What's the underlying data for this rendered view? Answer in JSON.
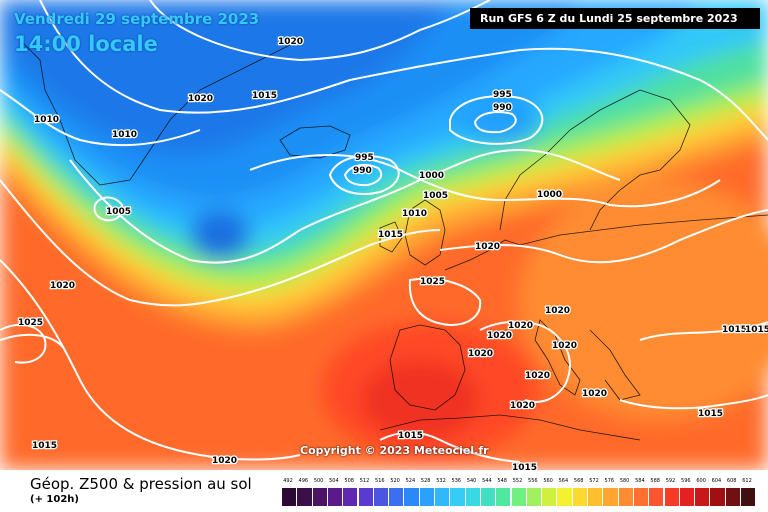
{
  "header": {
    "date": "Vendredi 29 septembre 2023",
    "time": "14:00 locale",
    "run": "Run GFS 6 Z du Lundi 25 septembre 2023"
  },
  "copyright": "Copyright © 2023 Meteociel.fr",
  "footer": {
    "title": "Géop. Z500 & pression au sol",
    "subtitle": "(+ 102h)"
  },
  "legend": {
    "ticks": [
      "492",
      "496",
      "500",
      "504",
      "508",
      "512",
      "516",
      "520",
      "524",
      "528",
      "532",
      "536",
      "540",
      "544",
      "548",
      "552",
      "556",
      "560",
      "564",
      "568",
      "572",
      "576",
      "580",
      "584",
      "588",
      "592",
      "596",
      "600",
      "604",
      "608",
      "612"
    ],
    "colors": [
      "#2a0a35",
      "#3a0f4a",
      "#4d1465",
      "#5a1a8a",
      "#6028b0",
      "#5a3ad0",
      "#4a55e0",
      "#3a70f0",
      "#2a88f8",
      "#2aa0ff",
      "#30b8ff",
      "#35ccf5",
      "#3ad8e0",
      "#40e0c0",
      "#50e8a0",
      "#70f080",
      "#a0f060",
      "#d0f040",
      "#f5f030",
      "#ffd830",
      "#ffc030",
      "#ffa530",
      "#ff8c30",
      "#ff7030",
      "#ff5530",
      "#f53a25",
      "#e52020",
      "#c81818",
      "#a01010",
      "#701010",
      "#401010"
    ]
  },
  "isobars": [
    {
      "label": "1020",
      "kind": "pressure"
    },
    {
      "label": "1015",
      "kind": "pressure"
    },
    {
      "label": "1010",
      "kind": "pressure"
    },
    {
      "label": "1005",
      "kind": "pressure"
    },
    {
      "label": "1000",
      "kind": "pressure"
    },
    {
      "label": "995",
      "kind": "pressure"
    },
    {
      "label": "990",
      "kind": "pressure"
    },
    {
      "label": "1025",
      "kind": "pressure"
    }
  ]
}
